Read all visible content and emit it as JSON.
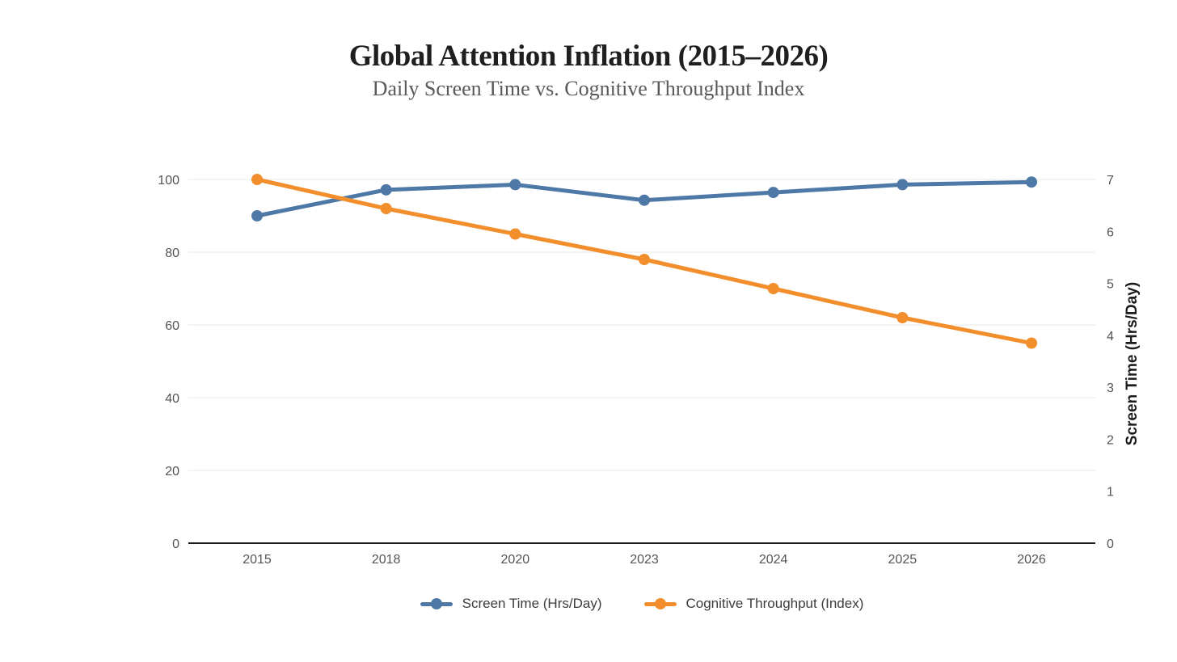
{
  "chart_data": {
    "type": "line",
    "title": "Global Attention Inflation (2015–2026)",
    "subtitle": "Daily Screen Time vs. Cognitive Throughput Index",
    "categories": [
      "2015",
      "2018",
      "2020",
      "2023",
      "2024",
      "2025",
      "2026"
    ],
    "series": [
      {
        "name": "Screen Time (Hrs/Day)",
        "axis": "right",
        "color": "#4E79A7",
        "values": [
          6.3,
          6.8,
          6.9,
          6.6,
          6.75,
          6.9,
          6.95
        ]
      },
      {
        "name": "Cognitive Throughput (Index)",
        "axis": "left",
        "color": "#F28E2B",
        "values": [
          100,
          92,
          85,
          78,
          70,
          62,
          55
        ]
      }
    ],
    "left_axis": {
      "title": "",
      "range": [
        0,
        100
      ],
      "ticks": [
        0,
        20,
        40,
        60,
        80,
        100
      ]
    },
    "right_axis": {
      "title": "Screen Time (Hrs/Day)",
      "range": [
        0,
        7
      ],
      "ticks": [
        0,
        1,
        2,
        3,
        4,
        5,
        6,
        7
      ]
    },
    "grid": "horizontal",
    "legend_position": "bottom",
    "colors": {
      "gridline": "#e9e9e9",
      "axis_baseline": "#1b1b1b",
      "tick_label": "#545454",
      "axis_title": "#1c1c1c"
    }
  }
}
